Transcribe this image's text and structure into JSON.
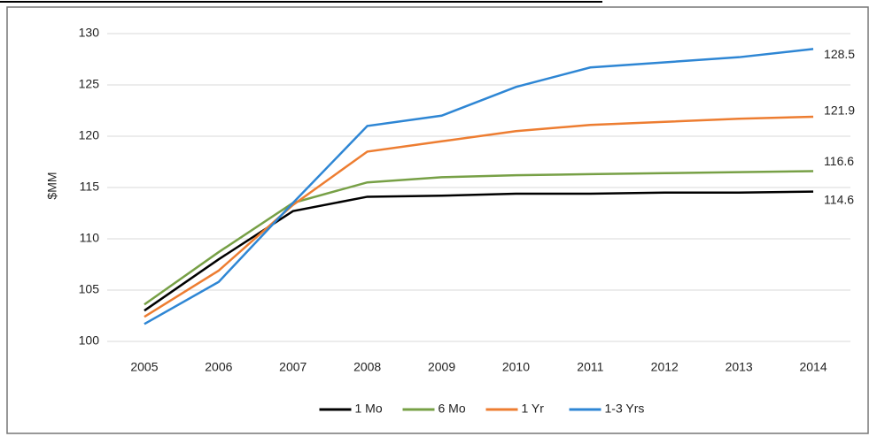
{
  "chart_data": {
    "type": "line",
    "y_label": "$MM",
    "categories": [
      "2005",
      "2006",
      "2007",
      "2008",
      "2009",
      "2010",
      "2011",
      "2012",
      "2013",
      "2014"
    ],
    "series": [
      {
        "name": "1 Mo",
        "color": "#000000",
        "values": [
          103.0,
          108.0,
          112.7,
          114.1,
          114.2,
          114.4,
          114.4,
          114.5,
          114.5,
          114.6
        ]
      },
      {
        "name": "6 Mo",
        "color": "#77a046",
        "values": [
          103.6,
          108.7,
          113.5,
          115.5,
          116.0,
          116.2,
          116.3,
          116.4,
          116.5,
          116.6
        ]
      },
      {
        "name": "1 Yr",
        "color": "#ed7d31",
        "values": [
          102.4,
          106.9,
          113.3,
          118.5,
          119.5,
          120.5,
          121.1,
          121.4,
          121.7,
          121.9
        ]
      },
      {
        "name": "1-3 Yrs",
        "color": "#2e86d4",
        "values": [
          101.7,
          105.8,
          113.5,
          121.0,
          122.0,
          124.8,
          126.7,
          127.2,
          127.7,
          128.5
        ]
      }
    ],
    "ylim": [
      100,
      130
    ],
    "yticks": [
      100,
      105,
      110,
      115,
      120,
      125,
      130
    ],
    "grid": true,
    "legend": "bottom"
  }
}
